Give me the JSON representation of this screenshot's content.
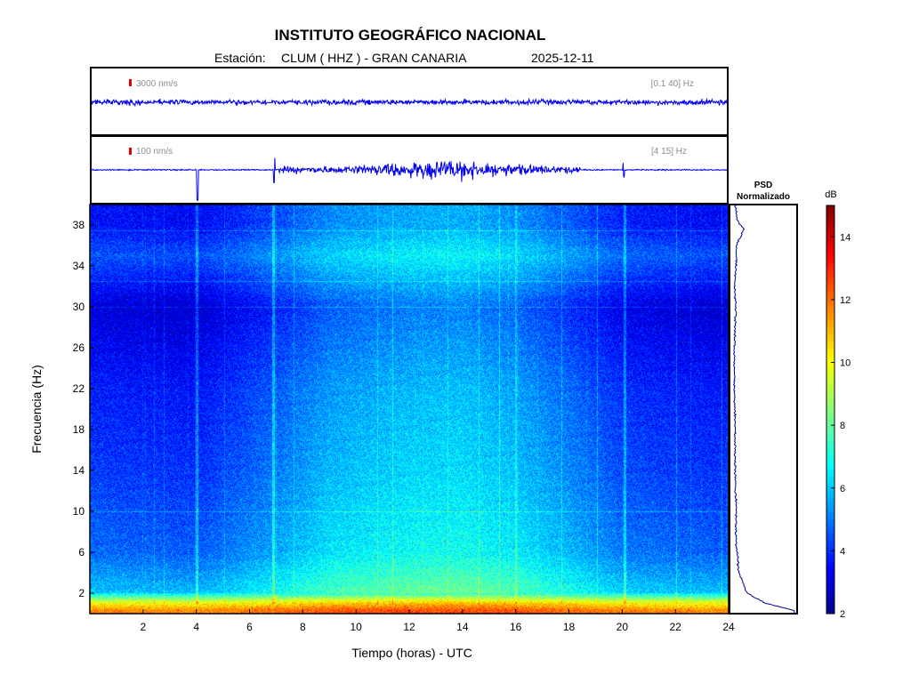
{
  "header": {
    "title": "INSTITUTO GEOGRÁFICO NACIONAL",
    "station_label": "Estación:",
    "station": "CLUM ( HHZ ) - GRAN CANARIA",
    "date": "2025-12-11"
  },
  "traces": [
    {
      "scale": "3000 nm/s",
      "band": "[0.1 40] Hz",
      "scale_marker_color": "#e00000",
      "trace_color": "#0000ee"
    },
    {
      "scale": "100 nm/s",
      "band": "[4 15] Hz",
      "scale_marker_color": "#e00000",
      "trace_color": "#0000ee"
    }
  ],
  "psd_panel": {
    "title_line1": "PSD",
    "title_line2": "Normalizado"
  },
  "colorbar": {
    "label": "dB",
    "min": 2,
    "max": 15,
    "ticks": [
      2,
      4,
      6,
      8,
      10,
      12,
      14
    ],
    "colormap": "jet"
  },
  "chart_data": {
    "type": "heatmap",
    "xlabel": "Tiempo (horas) - UTC",
    "ylabel": "Frecuencia  (Hz)",
    "xlim": [
      0,
      24
    ],
    "ylim": [
      0,
      40
    ],
    "xticks": [
      2,
      4,
      6,
      8,
      10,
      12,
      14,
      16,
      18,
      20,
      22,
      24
    ],
    "yticks": [
      2,
      6,
      10,
      14,
      18,
      22,
      26,
      30,
      34,
      38
    ],
    "value_unit": "dB",
    "approx_level_by_frequency_hz": [
      {
        "f": 0.3,
        "db": 12.0
      },
      {
        "f": 1.0,
        "db": 10.5
      },
      {
        "f": 2.0,
        "db": 7.0
      },
      {
        "f": 6.0,
        "db": 5.8
      },
      {
        "f": 14.0,
        "db": 5.2
      },
      {
        "f": 22.0,
        "db": 4.8
      },
      {
        "f": 30.0,
        "db": 4.0
      },
      {
        "f": 35.0,
        "db": 5.6
      },
      {
        "f": 38.0,
        "db": 4.6
      }
    ],
    "approx_level_by_hour": [
      {
        "h": 0,
        "db": 4.2
      },
      {
        "h": 4,
        "db": 4.0
      },
      {
        "h": 7,
        "db": 5.0
      },
      {
        "h": 9,
        "db": 5.8
      },
      {
        "h": 12,
        "db": 6.2
      },
      {
        "h": 14,
        "db": 6.3
      },
      {
        "h": 16,
        "db": 5.9
      },
      {
        "h": 18,
        "db": 5.2
      },
      {
        "h": 20,
        "db": 4.4
      },
      {
        "h": 24,
        "db": 4.0
      }
    ],
    "event_times_hours": [
      4.0,
      6.9,
      20.1
    ],
    "psd_normalized": {
      "frequency_hz": [
        0.3,
        1,
        2,
        4,
        6,
        8,
        10,
        14,
        18,
        22,
        26,
        30,
        32,
        34,
        36,
        37.5,
        38.5,
        40
      ],
      "value": [
        1.0,
        0.55,
        0.25,
        0.12,
        0.09,
        0.07,
        0.08,
        0.06,
        0.06,
        0.05,
        0.05,
        0.07,
        0.05,
        0.08,
        0.08,
        0.2,
        0.1,
        0.06
      ]
    }
  }
}
